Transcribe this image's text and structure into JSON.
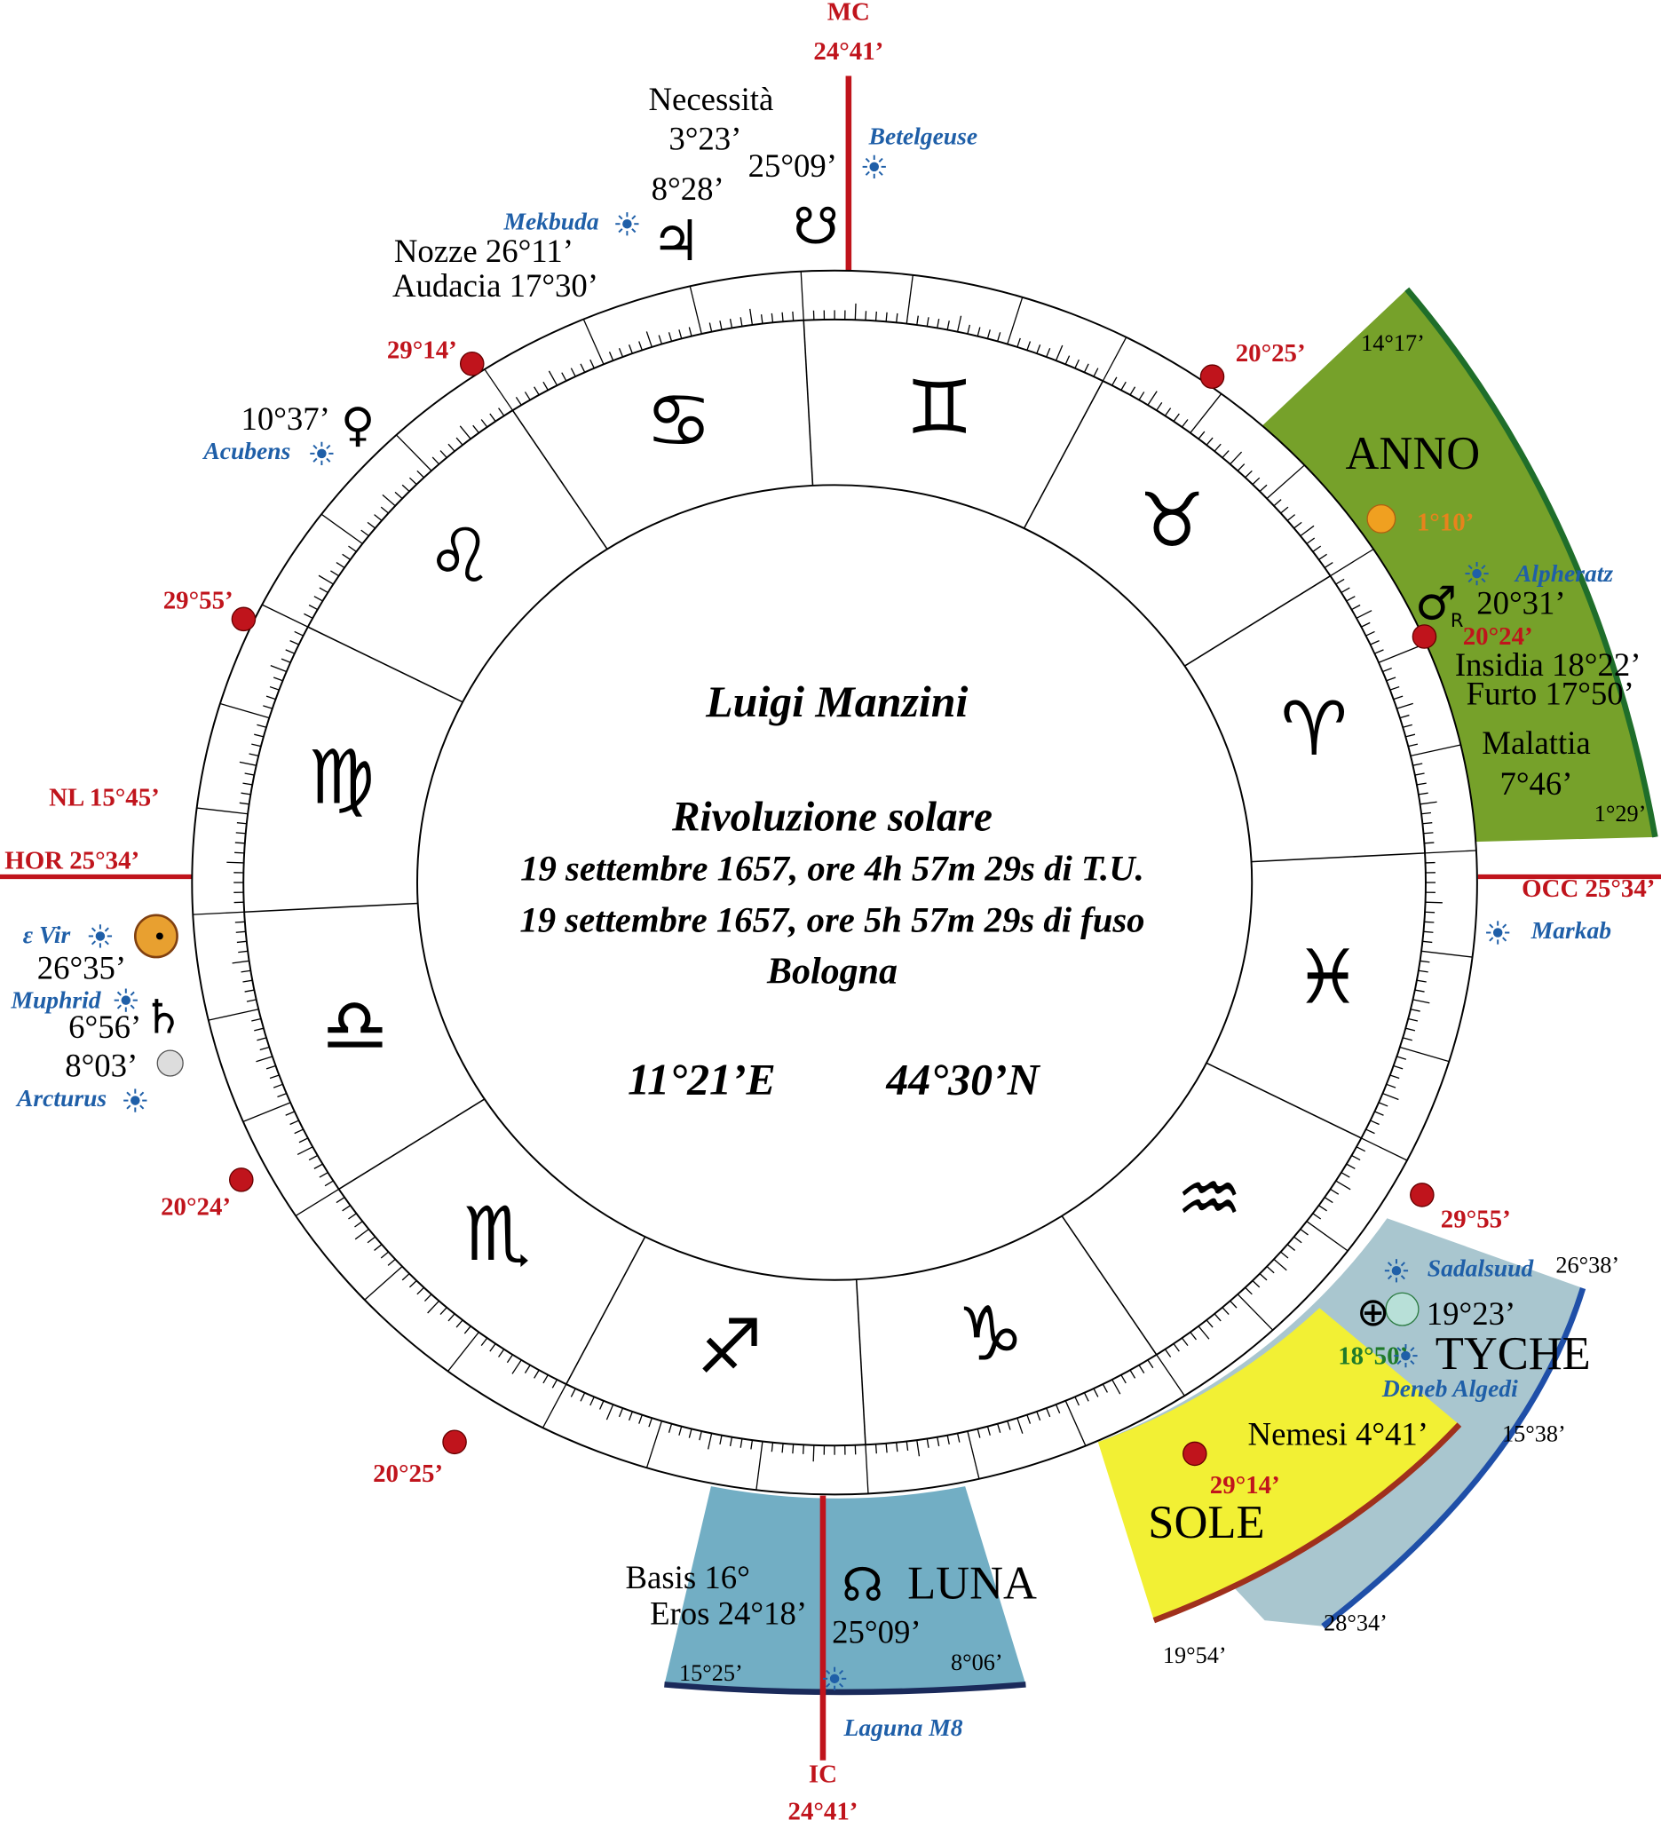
{
  "angles": {
    "mc": {
      "label": "MC",
      "degree": "24°41’"
    },
    "ic": {
      "label": "IC",
      "degree": "24°41’"
    },
    "hor": "HOR 25°34’",
    "occ": "OCC 25°34’",
    "nl": "NL  15°45’"
  },
  "center": {
    "name": "Luigi Manzini",
    "subtitle": "Rivoluzione solare",
    "line1": "19 settembre 1657, ore 4h 57m 29s di T.U.",
    "line2": "19 settembre 1657, ore 5h 57m 29s di fuso",
    "place": "Bologna",
    "longitude": "11°21’E",
    "latitude": "44°30’N"
  },
  "cusps": [
    "29°14’",
    "20°25’",
    "29°55’",
    "20°24’",
    "29°55’",
    "20°25’"
  ],
  "labels": [
    "Necessità",
    "3°23’",
    "25°09’",
    "8°28’",
    "Nozze 26°11’",
    "Audacia 17°30’",
    "10°37’",
    "14°17’",
    "ANNO",
    "20°31’",
    "Insidia 18°22’",
    "Furto 17°50’",
    "Malattia",
    "7°46’",
    "1°29’",
    "26°35’",
    "6°56’",
    "8°03’",
    "26°38’",
    "19°23’",
    "TYCHE",
    "15°38’",
    "Nemesi 4°41’",
    "SOLE",
    "28°34’",
    "19°54’",
    "Basis 16°",
    "Eros 24°18’",
    "LUNA",
    "25°09’",
    "15°25’",
    "8°06’"
  ],
  "colored": [
    "1°10’",
    "20°24’",
    "18°50’",
    "29°14’"
  ],
  "stars": [
    "Betelgeuse",
    "Mekbuda",
    "Acubens",
    "Alpheratz",
    "Markab",
    "ε Vir",
    "Muphrid",
    "Arcturus",
    "Sadalsuud",
    "Deneb Algedi",
    "Laguna M8"
  ],
  "symbols": [
    "♃",
    "☋",
    "♀",
    "♂",
    "R",
    "♄",
    "☊",
    "⊕"
  ],
  "signs": [
    "♈",
    "♉",
    "♊",
    "♋",
    "♌",
    "♍",
    "♎",
    "♏",
    "♐",
    "♑",
    "♒",
    "♓"
  ]
}
